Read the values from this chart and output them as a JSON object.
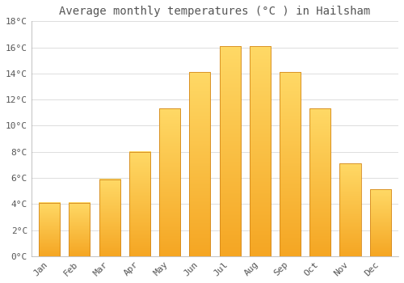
{
  "title": "Average monthly temperatures (°C ) in Hailsham",
  "months": [
    "Jan",
    "Feb",
    "Mar",
    "Apr",
    "May",
    "Jun",
    "Jul",
    "Aug",
    "Sep",
    "Oct",
    "Nov",
    "Dec"
  ],
  "values": [
    4.1,
    4.1,
    5.9,
    8.0,
    11.3,
    14.1,
    16.1,
    16.1,
    14.1,
    11.3,
    7.1,
    5.1
  ],
  "bar_color_light": "#FFD966",
  "bar_color_dark": "#F5A623",
  "bar_edge_color": "#D4881E",
  "ylim": [
    0,
    18
  ],
  "yticks": [
    0,
    2,
    4,
    6,
    8,
    10,
    12,
    14,
    16,
    18
  ],
  "ytick_labels": [
    "0°C",
    "2°C",
    "4°C",
    "6°C",
    "8°C",
    "10°C",
    "12°C",
    "14°C",
    "16°C",
    "18°C"
  ],
  "background_color": "#FFFFFF",
  "grid_color": "#DDDDDD",
  "title_fontsize": 10,
  "tick_fontsize": 8,
  "font_color": "#555555",
  "bar_width": 0.7
}
